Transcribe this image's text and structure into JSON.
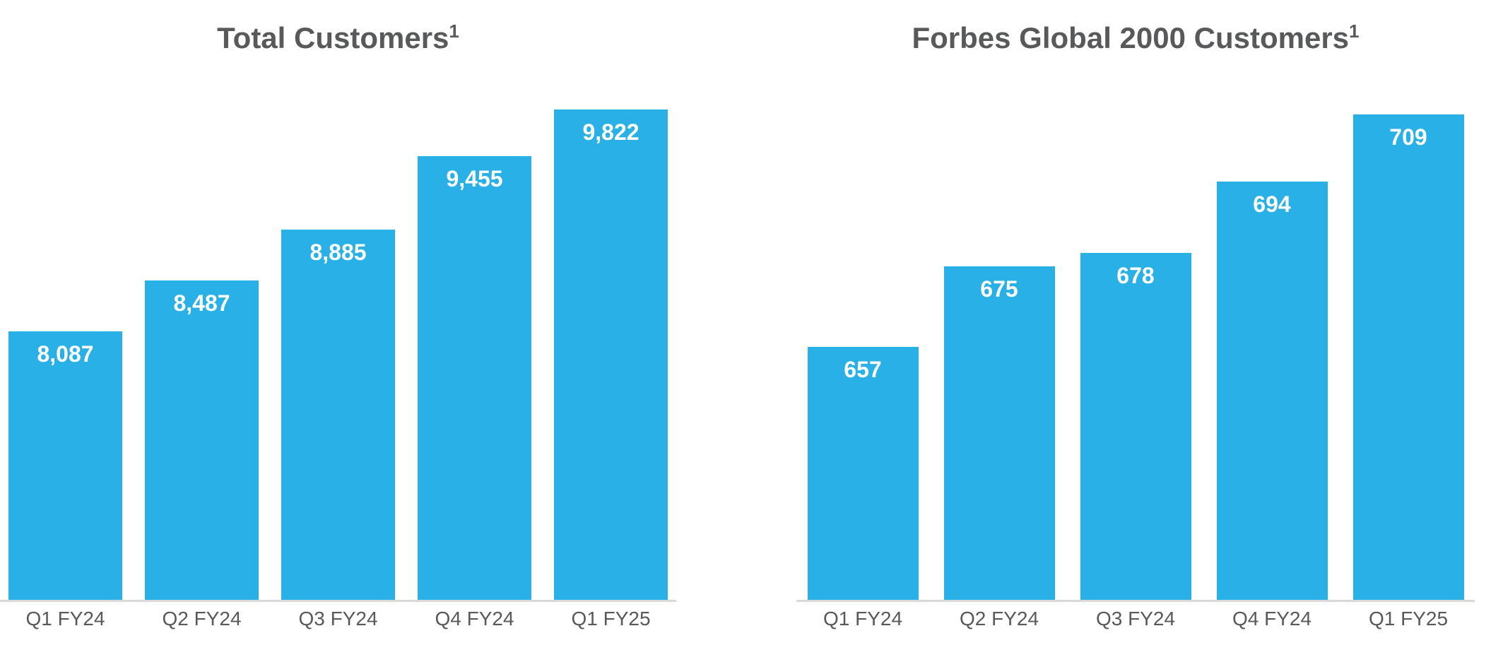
{
  "page": {
    "background": "#FFFFFF"
  },
  "colors": {
    "bar_fill": "#29B1E7",
    "title_text": "#58595B",
    "axis_label_text": "#58595B",
    "axis_line": "#D9D9D9",
    "value_label_text": "#FFFFFF"
  },
  "chart_data": [
    {
      "type": "bar",
      "title": "Total Customers",
      "title_footnote_marker": "1",
      "categories": [
        "Q1 FY24",
        "Q2 FY24",
        "Q3 FY24",
        "Q4 FY24",
        "Q1 FY25"
      ],
      "values": [
        8087,
        8487,
        8885,
        9455,
        9822
      ],
      "value_labels": [
        "8,087",
        "8,487",
        "8,885",
        "9,455",
        "9,822"
      ],
      "xlabel": "",
      "ylabel": "",
      "legend": "none",
      "grid": false,
      "y_axis_visible": false,
      "baseline_not_zero": true,
      "value_label_position": "inside-top"
    },
    {
      "type": "bar",
      "title": "Forbes Global 2000 Customers",
      "title_footnote_marker": "1",
      "categories": [
        "Q1 FY24",
        "Q2 FY24",
        "Q3 FY24",
        "Q4 FY24",
        "Q1 FY25"
      ],
      "values": [
        657,
        675,
        678,
        694,
        709
      ],
      "value_labels": [
        "657",
        "675",
        "678",
        "694",
        "709"
      ],
      "xlabel": "",
      "ylabel": "",
      "legend": "none",
      "grid": false,
      "y_axis_visible": false,
      "baseline_not_zero": true,
      "value_label_position": "inside-top"
    }
  ]
}
